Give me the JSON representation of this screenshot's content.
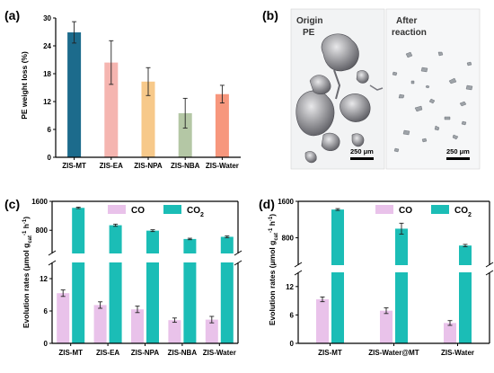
{
  "colors": {
    "co": "#e9c2ea",
    "co2": "#14b3ae",
    "co2_bar_fill": "#1bbdb6",
    "panel_a": [
      "#1c6b8c",
      "#f5b5b0",
      "#f7c98a",
      "#b4c7a5",
      "#f7977d"
    ]
  },
  "chart_data": [
    {
      "panel": "(a)",
      "type": "bar",
      "ylabel": "PE weight loss (%)",
      "categories": [
        "ZIS-MT",
        "ZIS-EA",
        "ZIS-NPA",
        "ZIS-NBA",
        "ZIS-Water"
      ],
      "values": [
        26.9,
        20.4,
        16.3,
        9.5,
        13.6
      ],
      "errors": [
        2.3,
        4.7,
        3.0,
        3.2,
        1.9
      ],
      "ylim": [
        0,
        30
      ],
      "yticks": [
        "0",
        "6",
        "12",
        "18",
        "24",
        "30"
      ],
      "grid": false
    },
    {
      "panel": "(b)",
      "type": "image",
      "labels": [
        "Origin",
        "PE",
        "After",
        "reaction"
      ],
      "scale_bars": [
        "250 μm",
        "250 μm"
      ]
    },
    {
      "panel": "(c)",
      "type": "bar",
      "ylabel": "Evolution rates (μmol g",
      "ylabel_sub": "cat",
      "ylabel_sup1": "-1",
      "ylabel_mid": " h",
      "ylabel_sup2": "-1",
      "ylabel_end": ")",
      "categories": [
        "ZIS-MT",
        "ZIS-EA",
        "ZIS-NPA",
        "ZIS-NBA",
        "ZIS-Water"
      ],
      "broken_axis": true,
      "series": [
        {
          "name": "CO",
          "values": [
            9.3,
            7.1,
            6.3,
            4.3,
            4.4
          ],
          "errors": [
            0.6,
            0.6,
            0.6,
            0.4,
            0.6
          ]
        },
        {
          "name": "CO",
          "name_sub": "2",
          "values": [
            1420,
            940,
            790,
            560,
            620
          ],
          "errors": [
            20,
            30,
            25,
            20,
            25
          ]
        }
      ],
      "ylim_lower": [
        0,
        15
      ],
      "ylim_upper": [
        160,
        1600
      ],
      "yticks_lower": [
        "0",
        "6",
        "12"
      ],
      "yticks_upper": [
        "800",
        "1600"
      ],
      "legend": "top"
    },
    {
      "panel": "(d)",
      "type": "bar",
      "ylabel": "Evolution rates (μmol g",
      "ylabel_sub": "cat",
      "ylabel_sup1": "-1",
      "ylabel_mid": " h",
      "ylabel_sup2": "-1",
      "ylabel_end": ")",
      "categories": [
        "ZIS-MT",
        "ZIS-Water@MT",
        "ZIS-Water"
      ],
      "broken_axis": true,
      "series": [
        {
          "name": "CO",
          "values": [
            9.3,
            6.9,
            4.3
          ],
          "errors": [
            0.5,
            0.6,
            0.5
          ]
        },
        {
          "name": "CO",
          "name_sub": "2",
          "values": [
            1420,
            1000,
            630
          ],
          "errors": [
            20,
            120,
            25
          ]
        }
      ],
      "ylim_lower": [
        0,
        15
      ],
      "ylim_upper": [
        200,
        1600
      ],
      "yticks_lower": [
        "0",
        "6",
        "12"
      ],
      "yticks_upper": [
        "800",
        "1600"
      ],
      "legend": "top"
    }
  ]
}
